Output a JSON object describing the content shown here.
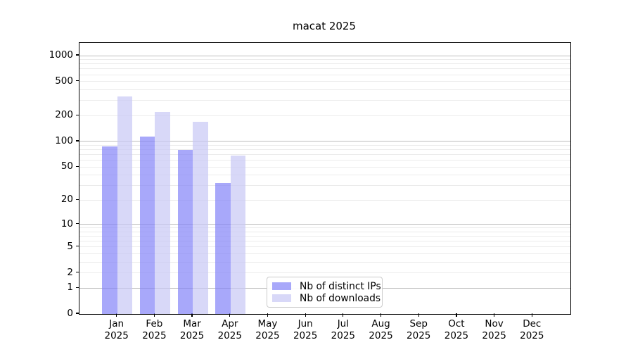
{
  "chart_data": {
    "type": "bar",
    "title": "macat 2025",
    "categories": [
      "Jan",
      "Feb",
      "Mar",
      "Apr",
      "May",
      "Jun",
      "Jul",
      "Aug",
      "Sep",
      "Oct",
      "Nov",
      "Dec"
    ],
    "x_year_suffix": "2025",
    "series": [
      {
        "name": "Nb of distinct IPs",
        "color": "#8383f8",
        "values": [
          88,
          115,
          80,
          32,
          0,
          0,
          0,
          0,
          0,
          0,
          0,
          0
        ]
      },
      {
        "name": "Nb of downloads",
        "color": "#c7c7f5",
        "values": [
          334,
          222,
          170,
          68,
          0,
          0,
          0,
          0,
          0,
          0,
          0,
          0
        ]
      }
    ],
    "xlabel": "",
    "ylabel": "",
    "y_scale": "log10(value+1)",
    "y_ticks": [
      1000,
      500,
      200,
      100,
      50,
      20,
      10,
      5,
      2,
      1,
      0
    ],
    "ylim": [
      0,
      1370
    ],
    "grid": {
      "on": true,
      "major_lines": [
        1,
        10,
        100,
        1000
      ],
      "minor_decades": [
        1,
        10,
        100
      ],
      "minor_multiples": [
        2,
        3,
        4,
        5,
        6,
        7,
        8,
        9
      ],
      "major_color": "#bdbdbd",
      "minor_color": "#ebebeb"
    },
    "legend": {
      "position": "bottom-center-inside",
      "entries": [
        "Nb of distinct IPs",
        "Nb of downloads"
      ]
    },
    "bar_group": {
      "offsets": [
        -0.2,
        0.2
      ],
      "width": 0.4
    }
  },
  "colors": {
    "background": "#ffffff",
    "axis": "#000000",
    "text": "#000000"
  }
}
